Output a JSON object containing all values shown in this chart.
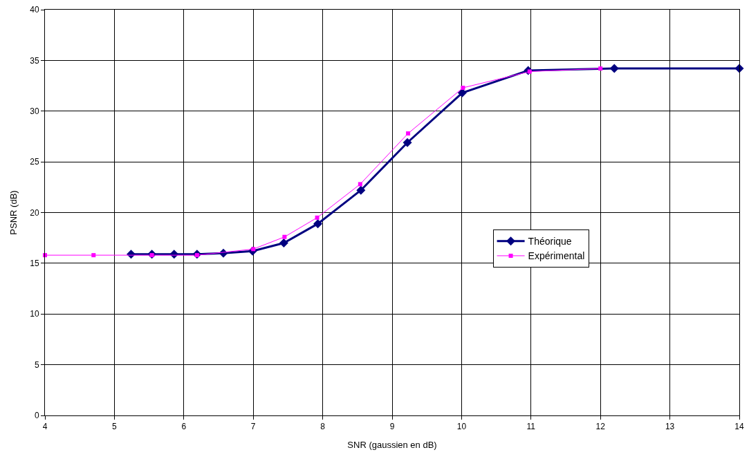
{
  "chart_data": {
    "type": "line",
    "xlabel": "SNR (gaussien en dB)",
    "ylabel": "PSNR (dB)",
    "xlim": [
      4,
      14
    ],
    "xticks": [
      4,
      5,
      6,
      7,
      8,
      9,
      10,
      11,
      12,
      13,
      14
    ],
    "ylim": [
      0,
      40
    ],
    "yticks": [
      0,
      5,
      10,
      15,
      20,
      25,
      30,
      35,
      40
    ],
    "grid": true,
    "legend": "right",
    "line_style": "solid",
    "series": [
      {
        "name": "Théorique",
        "color": "#000080",
        "marker": "diamond",
        "x": [
          5.24,
          5.54,
          5.86,
          6.19,
          6.57,
          6.99,
          7.44,
          7.93,
          8.55,
          9.22,
          10.01,
          10.96,
          12.2,
          14.0
        ],
        "values": [
          15.9,
          15.9,
          15.9,
          15.9,
          16.0,
          16.2,
          17.0,
          18.9,
          22.2,
          26.9,
          31.8,
          34.0,
          34.2,
          34.2
        ]
      },
      {
        "name": "Expérimental",
        "color": "#ff00ff",
        "marker": "square",
        "x": [
          4.0,
          4.7,
          5.54,
          6.19,
          7.0,
          7.45,
          7.92,
          8.54,
          9.23,
          10.02,
          10.98,
          12.0
        ],
        "values": [
          15.8,
          15.8,
          15.8,
          15.8,
          16.4,
          17.6,
          19.5,
          22.8,
          27.8,
          32.3,
          33.9,
          34.2
        ]
      }
    ]
  }
}
